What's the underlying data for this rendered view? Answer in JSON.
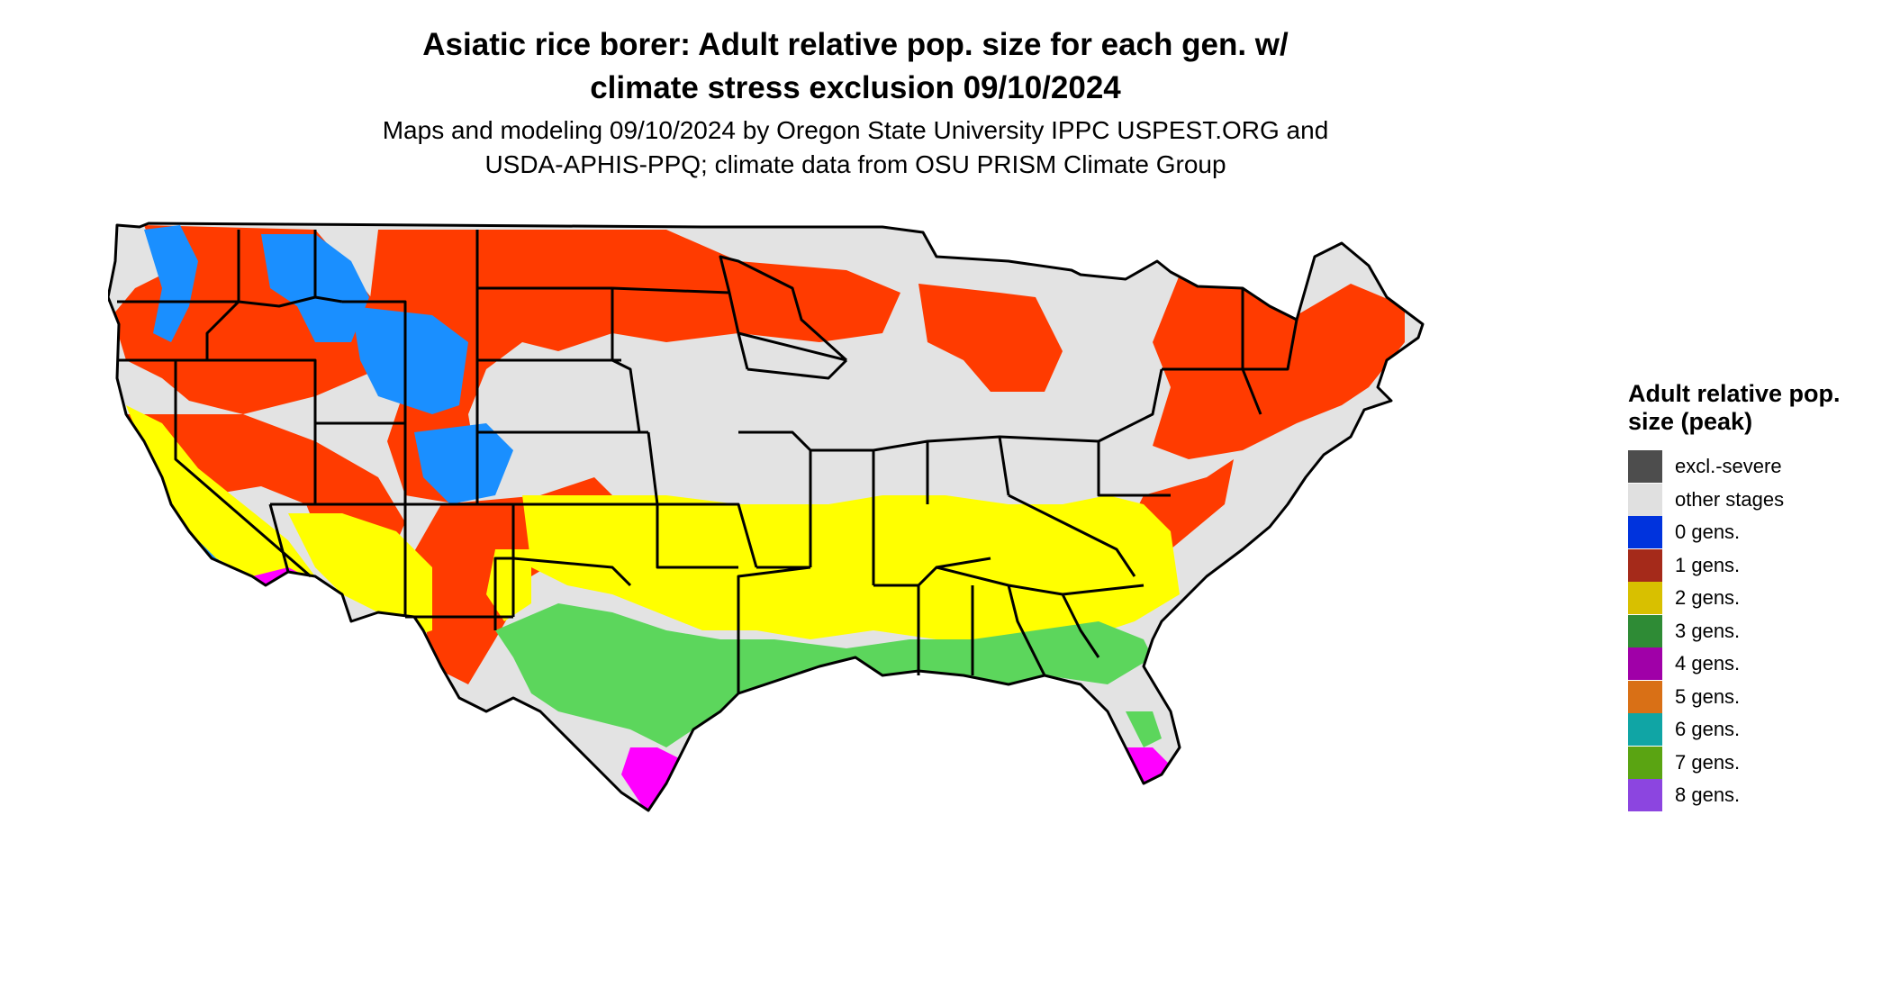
{
  "title": {
    "line1": "Asiatic rice borer: Adult relative pop. size for each gen. w/",
    "line2": "climate stress exclusion 09/10/2024"
  },
  "subtitle": {
    "line1": "Maps and modeling 09/10/2024 by Oregon State University IPPC USPEST.ORG and",
    "line2": "USDA-APHIS-PPQ; climate data from OSU PRISM Climate Group"
  },
  "legend": {
    "title": "Adult relative pop. size (peak)",
    "items": [
      {
        "label": "excl.-severe",
        "color": "#4d4d4d"
      },
      {
        "label": "other stages",
        "color": "#e0e0e0"
      },
      {
        "label": "0 gens.",
        "color": "#0033dd"
      },
      {
        "label": "1 gens.",
        "color": "#a52a1a"
      },
      {
        "label": "2 gens.",
        "color": "#d8c000"
      },
      {
        "label": "3 gens.",
        "color": "#2e8b35"
      },
      {
        "label": "4 gens.",
        "color": "#a000a8"
      },
      {
        "label": "5 gens.",
        "color": "#d97016"
      },
      {
        "label": "6 gens.",
        "color": "#10a5a5"
      },
      {
        "label": "7 gens.",
        "color": "#5aa412"
      },
      {
        "label": "8 gens.",
        "color": "#8c45e0"
      }
    ]
  },
  "map_colors": {
    "background": "#e3e3e3",
    "gen0": "#1a8fff",
    "gen1": "#ff3b00",
    "gen2": "#ffff00",
    "gen3": "#5cd65c",
    "gen4": "#ff00ff",
    "border": "#000000"
  }
}
